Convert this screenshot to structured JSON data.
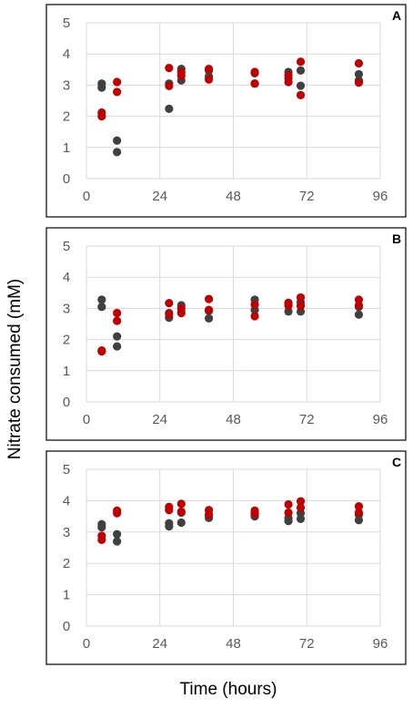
{
  "figure": {
    "ylabel": "Nitrate consumed (mM)",
    "xlabel": "Time (hours)"
  },
  "colors": {
    "series_dark": "#404040",
    "series_red": "#c00000",
    "grid": "#d9d9d9",
    "tick_text": "#595959"
  },
  "chart_data": [
    {
      "type": "scatter",
      "panel": "A",
      "xlabel": "",
      "ylabel": "",
      "xlim": [
        0,
        96
      ],
      "ylim": [
        0,
        5
      ],
      "xticks": [
        0,
        24,
        48,
        72,
        96
      ],
      "yticks": [
        0,
        1,
        2,
        3,
        4,
        5
      ],
      "grid": true,
      "series": [
        {
          "color": "#404040",
          "points": [
            [
              5,
              3.05
            ],
            [
              5,
              2.92
            ],
            [
              10,
              1.22
            ],
            [
              10,
              0.85
            ],
            [
              27,
              3.05
            ],
            [
              27,
              2.24
            ],
            [
              31,
              3.52
            ],
            [
              31,
              3.15
            ],
            [
              40,
              3.47
            ],
            [
              40,
              3.28
            ],
            [
              55,
              3.38
            ],
            [
              55,
              3.05
            ],
            [
              66,
              3.42
            ],
            [
              66,
              3.22
            ],
            [
              70,
              3.47
            ],
            [
              70,
              2.98
            ],
            [
              89,
              3.35
            ],
            [
              89,
              3.15
            ]
          ]
        },
        {
          "color": "#c00000",
          "points": [
            [
              5,
              2.12
            ],
            [
              5,
              2.0
            ],
            [
              10,
              3.1
            ],
            [
              10,
              2.78
            ],
            [
              27,
              3.55
            ],
            [
              27,
              2.97
            ],
            [
              31,
              3.42
            ],
            [
              31,
              3.3
            ],
            [
              40,
              3.52
            ],
            [
              40,
              3.18
            ],
            [
              55,
              3.42
            ],
            [
              55,
              3.05
            ],
            [
              66,
              3.32
            ],
            [
              66,
              3.1
            ],
            [
              70,
              3.75
            ],
            [
              70,
              2.68
            ],
            [
              89,
              3.7
            ],
            [
              89,
              3.08
            ]
          ]
        }
      ]
    },
    {
      "type": "scatter",
      "panel": "B",
      "xlabel": "",
      "ylabel": "",
      "xlim": [
        0,
        96
      ],
      "ylim": [
        0,
        5
      ],
      "xticks": [
        0,
        24,
        48,
        72,
        96
      ],
      "yticks": [
        0,
        1,
        2,
        3,
        4,
        5
      ],
      "grid": true,
      "series": [
        {
          "color": "#404040",
          "points": [
            [
              5,
              3.28
            ],
            [
              5,
              3.05
            ],
            [
              10,
              2.1
            ],
            [
              10,
              1.78
            ],
            [
              27,
              2.85
            ],
            [
              27,
              2.7
            ],
            [
              31,
              3.1
            ],
            [
              31,
              2.88
            ],
            [
              40,
              2.92
            ],
            [
              40,
              2.68
            ],
            [
              55,
              3.28
            ],
            [
              55,
              2.95
            ],
            [
              66,
              3.1
            ],
            [
              66,
              2.9
            ],
            [
              70,
              3.2
            ],
            [
              70,
              2.9
            ],
            [
              89,
              3.05
            ],
            [
              89,
              2.8
            ]
          ]
        },
        {
          "color": "#c00000",
          "points": [
            [
              5,
              1.65
            ],
            [
              5,
              1.62
            ],
            [
              10,
              2.85
            ],
            [
              10,
              2.6
            ],
            [
              27,
              3.17
            ],
            [
              27,
              2.82
            ],
            [
              31,
              3.0
            ],
            [
              31,
              2.85
            ],
            [
              40,
              3.3
            ],
            [
              40,
              2.95
            ],
            [
              55,
              3.12
            ],
            [
              55,
              2.75
            ],
            [
              66,
              3.18
            ],
            [
              66,
              3.1
            ],
            [
              70,
              3.35
            ],
            [
              70,
              3.08
            ],
            [
              89,
              3.28
            ],
            [
              89,
              3.1
            ]
          ]
        }
      ]
    },
    {
      "type": "scatter",
      "panel": "C",
      "xlabel": "",
      "ylabel": "",
      "xlim": [
        0,
        96
      ],
      "ylim": [
        0,
        5
      ],
      "xticks": [
        0,
        24,
        48,
        72,
        96
      ],
      "yticks": [
        0,
        1,
        2,
        3,
        4,
        5
      ],
      "grid": true,
      "series": [
        {
          "color": "#404040",
          "points": [
            [
              5,
              3.25
            ],
            [
              5,
              3.15
            ],
            [
              10,
              2.93
            ],
            [
              10,
              2.7
            ],
            [
              27,
              3.28
            ],
            [
              27,
              3.18
            ],
            [
              31,
              3.62
            ],
            [
              31,
              3.3
            ],
            [
              40,
              3.55
            ],
            [
              40,
              3.45
            ],
            [
              55,
              3.6
            ],
            [
              55,
              3.5
            ],
            [
              66,
              3.45
            ],
            [
              66,
              3.35
            ],
            [
              70,
              3.6
            ],
            [
              70,
              3.42
            ],
            [
              89,
              3.55
            ],
            [
              89,
              3.38
            ]
          ]
        },
        {
          "color": "#c00000",
          "points": [
            [
              5,
              2.88
            ],
            [
              5,
              2.75
            ],
            [
              10,
              3.68
            ],
            [
              10,
              3.6
            ],
            [
              27,
              3.8
            ],
            [
              27,
              3.7
            ],
            [
              31,
              3.9
            ],
            [
              31,
              3.65
            ],
            [
              40,
              3.7
            ],
            [
              40,
              3.55
            ],
            [
              55,
              3.68
            ],
            [
              55,
              3.58
            ],
            [
              66,
              3.88
            ],
            [
              66,
              3.62
            ],
            [
              70,
              3.98
            ],
            [
              70,
              3.78
            ],
            [
              89,
              3.82
            ],
            [
              89,
              3.62
            ]
          ]
        }
      ]
    }
  ]
}
